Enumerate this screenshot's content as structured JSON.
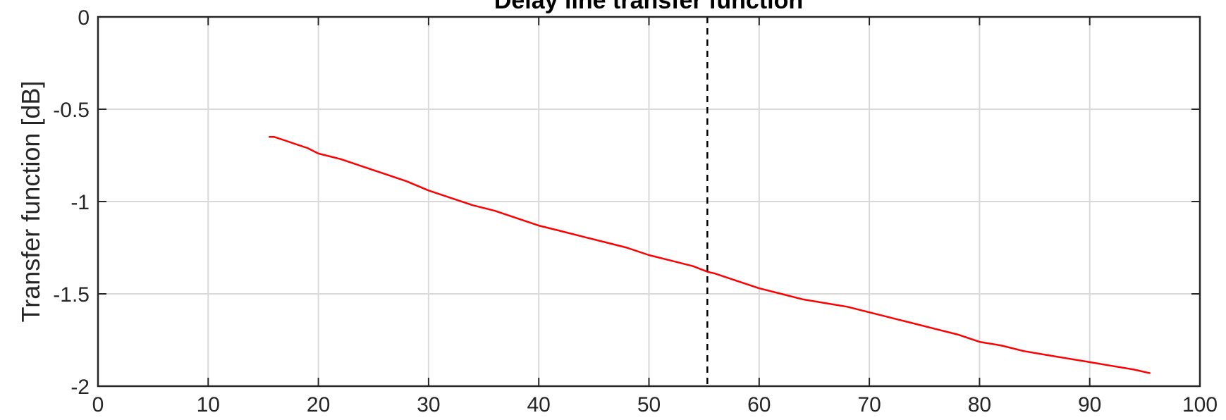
{
  "chart_data": {
    "type": "line",
    "title": "Delay line transfer function",
    "xlabel": "",
    "ylabel": "Transfer function [dB]",
    "xlim": [
      0,
      100
    ],
    "ylim": [
      -2,
      0
    ],
    "x_ticks": [
      "0",
      "10",
      "20",
      "30",
      "40",
      "50",
      "60",
      "70",
      "80",
      "90",
      "100"
    ],
    "y_ticks": [
      "0",
      "-0.5",
      "-1",
      "-1.5",
      "-2"
    ],
    "grid": true,
    "series": [
      {
        "color": "#ff0000",
        "style": "solid",
        "x": [
          15.5,
          16,
          17,
          18,
          19,
          20,
          22,
          24,
          26,
          28,
          30,
          32,
          34,
          36,
          38,
          40,
          42,
          44,
          46,
          48,
          50,
          52,
          54,
          55.3,
          56,
          58,
          60,
          62,
          64,
          66,
          68,
          70,
          72,
          74,
          76,
          78,
          80,
          82,
          84,
          86,
          88,
          90,
          92,
          94,
          95.5
        ],
        "y": [
          -0.65,
          -0.65,
          -0.67,
          -0.69,
          -0.71,
          -0.74,
          -0.77,
          -0.81,
          -0.85,
          -0.89,
          -0.94,
          -0.98,
          -1.02,
          -1.05,
          -1.09,
          -1.13,
          -1.16,
          -1.19,
          -1.22,
          -1.25,
          -1.29,
          -1.32,
          -1.35,
          -1.38,
          -1.39,
          -1.43,
          -1.47,
          -1.5,
          -1.53,
          -1.55,
          -1.57,
          -1.6,
          -1.63,
          -1.66,
          -1.69,
          -1.72,
          -1.76,
          -1.78,
          -1.81,
          -1.83,
          -1.85,
          -1.87,
          -1.89,
          -1.91,
          -1.93
        ]
      }
    ],
    "vertical_line": {
      "x": 55.3,
      "color": "#000000",
      "style": "dashed"
    }
  }
}
